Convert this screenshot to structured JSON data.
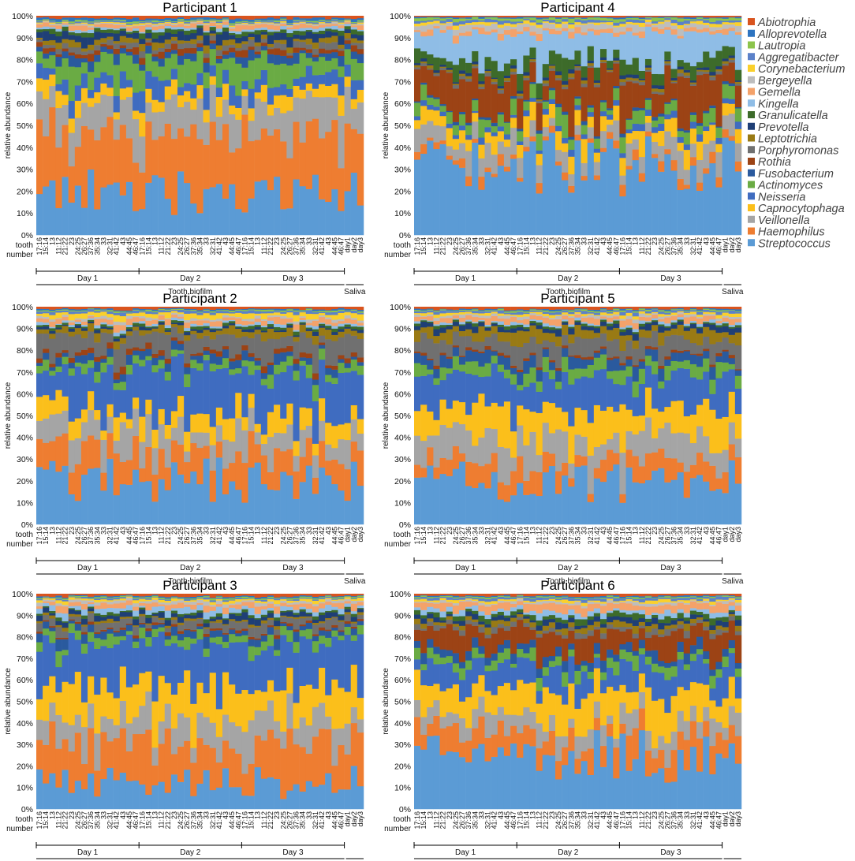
{
  "chart_data": {
    "type": "stacked_bar",
    "ylabel": "relative abundance",
    "xlabel_line1": "tooth",
    "xlabel_line2": "number",
    "y_ticks": [
      "0%",
      "10%",
      "20%",
      "30%",
      "40%",
      "50%",
      "60%",
      "70%",
      "80%",
      "90%",
      "100%"
    ],
    "group_labels": [
      "Day 1",
      "Day 2",
      "Day 3"
    ],
    "biofilm_label": "Tooth biofilm",
    "saliva_label": "Saliva",
    "tooth_labels": [
      "17:16",
      "15:14",
      "13",
      "11:12",
      "21:22",
      "23",
      "24:25",
      "26:27",
      "37:36",
      "35:34",
      "33",
      "32:31",
      "41:42",
      "43",
      "44:45",
      "46:47"
    ],
    "saliva_days": [
      "day1",
      "day2",
      "day3"
    ],
    "legend": [
      {
        "name": "Abiotrophia",
        "color": "#d9541e"
      },
      {
        "name": "Alloprevotella",
        "color": "#2e74c0"
      },
      {
        "name": "Lautropia",
        "color": "#8cc44c"
      },
      {
        "name": "Aggregatibacter",
        "color": "#5b81c9"
      },
      {
        "name": "Corynebacterium",
        "color": "#fad02c"
      },
      {
        "name": "Bergeyella",
        "color": "#bdbdbd"
      },
      {
        "name": "Gemella",
        "color": "#f4a26a"
      },
      {
        "name": "Kingella",
        "color": "#8fbde6"
      },
      {
        "name": "Granulicatella",
        "color": "#3d6b2a"
      },
      {
        "name": "Prevotella",
        "color": "#1f3f76"
      },
      {
        "name": "Leptotrichia",
        "color": "#997a14"
      },
      {
        "name": "Porphyromonas",
        "color": "#707070"
      },
      {
        "name": "Rothia",
        "color": "#9c4315"
      },
      {
        "name": "Fusobacterium",
        "color": "#2a5a9e"
      },
      {
        "name": "Actinomyces",
        "color": "#6aab44"
      },
      {
        "name": "Neisseria",
        "color": "#3f6cc0"
      },
      {
        "name": "Capnocytophaga",
        "color": "#fbbf1b"
      },
      {
        "name": "Veillonella",
        "color": "#a5a5a5"
      },
      {
        "name": "Haemophilus",
        "color": "#ee7d31"
      },
      {
        "name": "Streptococcus",
        "color": "#5b9bd5"
      }
    ],
    "panels": [
      {
        "title": "Participant 1",
        "profile": {
          "Streptococcus": 20,
          "Haemophilus": 27,
          "Veillonella": 15,
          "Capnocytophaga": 6,
          "Neisseria": 6,
          "Actinomyces": 8,
          "Fusobacterium": 3,
          "Rothia": 2,
          "Porphyromonas": 2,
          "Leptotrichia": 2,
          "Prevotella": 3,
          "Granulicatella": 1.5,
          "Kingella": 1,
          "Gemella": 1.5,
          "Bergeyella": 0.5,
          "Corynebacterium": 0.5,
          "Aggregatibacter": 0.5,
          "Lautropia": 0.5,
          "Alloprevotella": 1,
          "Abiotrophia": 1
        }
      },
      {
        "title": "Participant 4",
        "profile": {
          "Streptococcus": 33,
          "Haemophilus": 3,
          "Veillonella": 8,
          "Capnocytophaga": 6,
          "Neisseria": 2,
          "Actinomyces": 5,
          "Fusobacterium": 1,
          "Rothia": 14,
          "Porphyromonas": 1,
          "Leptotrichia": 1,
          "Prevotella": 1,
          "Granulicatella": 5,
          "Kingella": 12,
          "Gemella": 2,
          "Bergeyella": 2,
          "Corynebacterium": 1,
          "Aggregatibacter": 1,
          "Lautropia": 1,
          "Alloprevotella": 0.5,
          "Abiotrophia": 0.5
        }
      },
      {
        "title": "Participant 2",
        "profile": {
          "Streptococcus": 22,
          "Haemophilus": 12,
          "Veillonella": 10,
          "Capnocytophaga": 8,
          "Neisseria": 18,
          "Actinomyces": 4,
          "Fusobacterium": 3,
          "Rothia": 2,
          "Porphyromonas": 8,
          "Leptotrichia": 3,
          "Prevotella": 1,
          "Granulicatella": 1,
          "Kingella": 1,
          "Gemella": 2,
          "Bergeyella": 1,
          "Corynebacterium": 2,
          "Aggregatibacter": 1,
          "Lautropia": 0.5,
          "Alloprevotella": 0.5,
          "Abiotrophia": 1
        }
      },
      {
        "title": "Participant 5",
        "profile": {
          "Streptococcus": 20,
          "Haemophilus": 8,
          "Veillonella": 12,
          "Capnocytophaga": 14,
          "Neisseria": 14,
          "Actinomyces": 5,
          "Fusobacterium": 4,
          "Rothia": 1,
          "Porphyromonas": 7,
          "Leptotrichia": 5,
          "Prevotella": 2,
          "Granulicatella": 1,
          "Kingella": 1,
          "Gemella": 2,
          "Bergeyella": 1,
          "Corynebacterium": 1,
          "Aggregatibacter": 1,
          "Lautropia": 0.5,
          "Alloprevotella": 0.5,
          "Abiotrophia": 1
        }
      },
      {
        "title": "Participant 3",
        "profile": {
          "Streptococcus": 12,
          "Haemophilus": 18,
          "Veillonella": 12,
          "Capnocytophaga": 16,
          "Neisseria": 20,
          "Actinomyces": 4,
          "Fusobacterium": 3,
          "Rothia": 1,
          "Porphyromonas": 3,
          "Leptotrichia": 1,
          "Prevotella": 2,
          "Granulicatella": 1,
          "Kingella": 2,
          "Gemella": 2,
          "Bergeyella": 1,
          "Corynebacterium": 1,
          "Aggregatibacter": 0.5,
          "Lautropia": 0.5,
          "Alloprevotella": 0.5,
          "Abiotrophia": 1
        }
      },
      {
        "title": "Participant 6",
        "profile": {
          "Streptococcus": 25,
          "Haemophilus": 10,
          "Veillonella": 8,
          "Capnocytophaga": 14,
          "Neisseria": 10,
          "Actinomyces": 4,
          "Fusobacterium": 4,
          "Rothia": 10,
          "Porphyromonas": 2,
          "Leptotrichia": 2,
          "Prevotella": 2,
          "Granulicatella": 2,
          "Kingella": 2,
          "Gemella": 3,
          "Bergeyella": 1,
          "Corynebacterium": 1,
          "Aggregatibacter": 1,
          "Lautropia": 0.5,
          "Alloprevotella": 0.5,
          "Abiotrophia": 1
        }
      }
    ]
  }
}
